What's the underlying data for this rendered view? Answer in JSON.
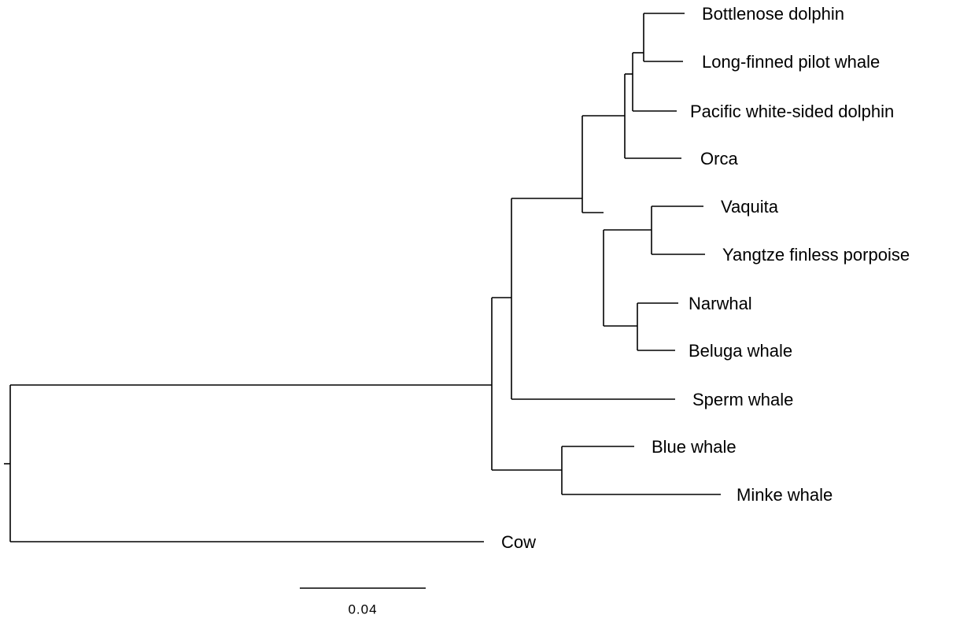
{
  "tree": {
    "leaves": [
      {
        "label": "Bottlenose dolphin"
      },
      {
        "label": "Long-finned pilot whale"
      },
      {
        "label": "Pacific white-sided dolphin"
      },
      {
        "label": "Orca"
      },
      {
        "label": "Vaquita"
      },
      {
        "label": "Yangtze finless porpoise"
      },
      {
        "label": "Narwhal"
      },
      {
        "label": "Beluga whale"
      },
      {
        "label": "Sperm whale"
      },
      {
        "label": "Blue whale"
      },
      {
        "label": "Minke whale"
      },
      {
        "label": "Cow"
      }
    ],
    "scale_bar": {
      "label": "0.04"
    }
  }
}
